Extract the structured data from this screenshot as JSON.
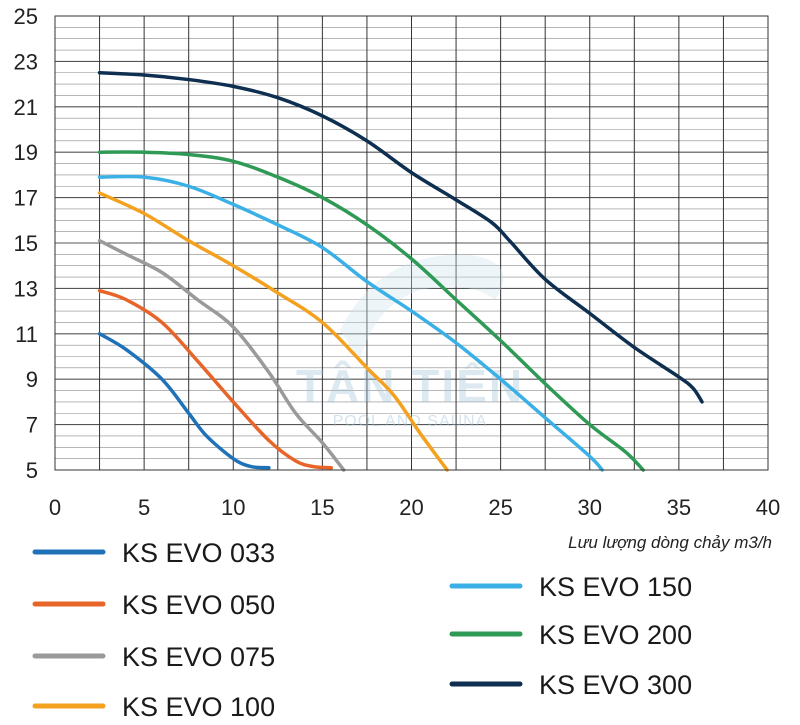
{
  "chart_data": {
    "type": "line",
    "title": "",
    "xlabel": "Lưu lượng dòng chảy m3/h",
    "ylabel": "",
    "xlim": [
      0,
      40
    ],
    "ylim": [
      5,
      25
    ],
    "x_ticks": [
      0,
      5,
      10,
      15,
      20,
      25,
      30,
      35,
      40
    ],
    "y_ticks": [
      5,
      7,
      9,
      11,
      13,
      15,
      17,
      19,
      21,
      23,
      25
    ],
    "grid": true,
    "legend": "bottom",
    "watermark": {
      "main": "TÂN TIẾN",
      "sub": "POOL AND SAUNA"
    },
    "series": [
      {
        "name": "KS EVO 033",
        "color": "#1f72b8",
        "x": [
          2.5,
          4,
          6,
          7.5,
          8.5,
          10,
          11,
          12
        ],
        "y": [
          11,
          10.3,
          9,
          7.5,
          6.5,
          5.5,
          5.15,
          5.1
        ]
      },
      {
        "name": "KS EVO 050",
        "color": "#e8652a",
        "x": [
          2.5,
          4,
          6,
          8,
          10,
          12,
          13.5,
          14.5,
          15.5
        ],
        "y": [
          12.9,
          12.5,
          11.5,
          9.8,
          8,
          6.3,
          5.4,
          5.15,
          5.1
        ]
      },
      {
        "name": "KS EVO 075",
        "color": "#9a9a9a",
        "x": [
          2.5,
          4,
          6,
          8,
          10,
          12,
          13.5,
          15,
          16.2
        ],
        "y": [
          15.1,
          14.5,
          13.7,
          12.5,
          11.3,
          9.3,
          7.5,
          6.2,
          5.0
        ]
      },
      {
        "name": "KS EVO 100",
        "color": "#f4a11f",
        "x": [
          2.5,
          5,
          7.5,
          10,
          12.5,
          15,
          17.5,
          19,
          20.5,
          22
        ],
        "y": [
          17.2,
          16.3,
          15.1,
          14,
          12.8,
          11.5,
          9.5,
          8.3,
          6.6,
          5.0
        ]
      },
      {
        "name": "KS EVO 150",
        "color": "#3ab0e6",
        "x": [
          2.5,
          5,
          7.5,
          10,
          12.5,
          15,
          17.5,
          20,
          22.5,
          25,
          27.5,
          30,
          30.7
        ],
        "y": [
          17.9,
          17.9,
          17.5,
          16.7,
          15.8,
          14.8,
          13.3,
          12,
          10.6,
          9,
          7.3,
          5.6,
          5.0
        ]
      },
      {
        "name": "KS EVO 200",
        "color": "#2e9a55",
        "x": [
          2.5,
          5,
          7.5,
          10,
          12.5,
          15,
          17.5,
          20,
          22.5,
          25,
          27.5,
          30,
          32,
          33
        ],
        "y": [
          19,
          19,
          18.9,
          18.6,
          17.9,
          17,
          15.8,
          14.3,
          12.5,
          10.7,
          8.8,
          7,
          5.8,
          5.0
        ]
      },
      {
        "name": "KS EVO 300",
        "color": "#0e2f50",
        "x": [
          2.5,
          5,
          7.5,
          10,
          12.5,
          15,
          17.5,
          20,
          22.5,
          24.5,
          25.5,
          27.5,
          30,
          32.5,
          35,
          35.8,
          36.3
        ],
        "y": [
          22.5,
          22.4,
          22.2,
          21.9,
          21.4,
          20.6,
          19.5,
          18.1,
          16.9,
          15.9,
          15.1,
          13.4,
          11.9,
          10.4,
          9.1,
          8.6,
          8.0
        ]
      }
    ]
  }
}
